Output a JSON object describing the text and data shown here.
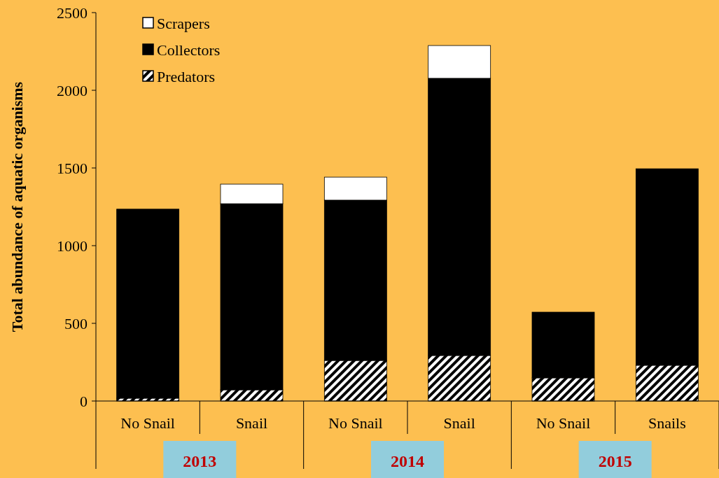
{
  "chart_data": {
    "type": "bar",
    "stacked": true,
    "ylabel": "Total abundance of aquatic organisms",
    "categories": [
      "No Snail",
      "Snail",
      "No Snail",
      "Snail",
      "No Snail",
      "Snails"
    ],
    "series": [
      {
        "name": "Predators",
        "color": "#000000",
        "values": [
          18,
          72,
          261,
          293,
          149,
          230
        ]
      },
      {
        "name": "Collectors",
        "color": "#000000",
        "values": [
          1217,
          1198,
          1032,
          1784,
          423,
          1265
        ]
      },
      {
        "name": "Scrapers",
        "color": "#ffffff",
        "values": [
          0,
          126,
          148,
          211,
          0,
          0
        ]
      }
    ],
    "ylim": [
      0,
      2500
    ],
    "yticks": [
      0,
      500,
      1000,
      1500,
      2000,
      2500
    ],
    "grid": false,
    "legend": "top left",
    "annotations": [
      "2013",
      "2014",
      "2015"
    ]
  }
}
